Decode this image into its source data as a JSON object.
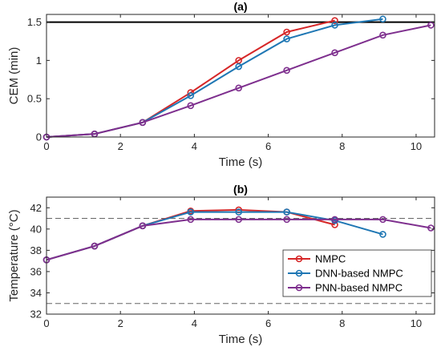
{
  "colors": {
    "NMPC": "#d62728",
    "DNN-based NMPC": "#1f77b4",
    "PNN-based NMPC": "#7e2f8e",
    "threshold": "#000000",
    "bounds": "#666666"
  },
  "chart_data": [
    {
      "type": "line",
      "title": "(a)",
      "xlabel": "Time (s)",
      "ylabel": "CEM (min)",
      "xlim": [
        0,
        10.5
      ],
      "ylim": [
        0,
        1.6
      ],
      "xticks": [
        0,
        2,
        4,
        6,
        8,
        10
      ],
      "xtick_labels": [
        "0",
        "2",
        "4",
        "6",
        "8",
        "10"
      ],
      "yticks": [
        0,
        0.5,
        1,
        1.5
      ],
      "ytick_labels": [
        "0",
        "0.5",
        "1",
        "1.5"
      ],
      "grid": false,
      "reference_line": {
        "y": 1.5,
        "style": "solid"
      },
      "series": [
        {
          "name": "NMPC",
          "x": [
            0,
            1.3,
            2.6,
            3.9,
            5.2,
            6.5,
            7.8
          ],
          "y": [
            0,
            0.04,
            0.19,
            0.58,
            1.0,
            1.37,
            1.52
          ]
        },
        {
          "name": "DNN-based NMPC",
          "x": [
            0,
            1.3,
            2.6,
            3.9,
            5.2,
            6.5,
            7.8,
            9.1
          ],
          "y": [
            0,
            0.04,
            0.19,
            0.54,
            0.92,
            1.28,
            1.46,
            1.54
          ]
        },
        {
          "name": "PNN-based NMPC",
          "x": [
            0,
            1.3,
            2.6,
            3.9,
            5.2,
            6.5,
            7.8,
            9.1,
            10.4
          ],
          "y": [
            0,
            0.04,
            0.19,
            0.41,
            0.64,
            0.87,
            1.1,
            1.33,
            1.46
          ]
        }
      ]
    },
    {
      "type": "line",
      "title": "(b)",
      "xlabel": "Time (s)",
      "ylabel": "Temperature (°C)",
      "xlim": [
        0,
        10.5
      ],
      "ylim": [
        32,
        43
      ],
      "xticks": [
        0,
        2,
        4,
        6,
        8,
        10
      ],
      "xtick_labels": [
        "0",
        "2",
        "4",
        "6",
        "8",
        "10"
      ],
      "yticks": [
        32,
        34,
        36,
        38,
        40,
        42
      ],
      "ytick_labels": [
        "32",
        "34",
        "36",
        "38",
        "40",
        "42"
      ],
      "grid": false,
      "bounds": [
        33,
        41
      ],
      "legend": {
        "placement": "right",
        "entries": [
          "NMPC",
          "DNN-based NMPC",
          "PNN-based NMPC"
        ]
      },
      "series": [
        {
          "name": "NMPC",
          "x": [
            0,
            1.3,
            2.6,
            3.9,
            5.2,
            6.5,
            7.8
          ],
          "y": [
            37.1,
            38.4,
            40.3,
            41.7,
            41.8,
            41.6,
            40.4
          ]
        },
        {
          "name": "DNN-based NMPC",
          "x": [
            0,
            1.3,
            2.6,
            3.9,
            5.2,
            6.5,
            7.8,
            9.1
          ],
          "y": [
            37.1,
            38.4,
            40.3,
            41.6,
            41.6,
            41.6,
            40.8,
            39.5
          ]
        },
        {
          "name": "PNN-based NMPC",
          "x": [
            0,
            1.3,
            2.6,
            3.9,
            5.2,
            6.5,
            7.8,
            9.1,
            10.4
          ],
          "y": [
            37.1,
            38.4,
            40.3,
            40.9,
            40.9,
            40.9,
            40.9,
            40.9,
            40.1
          ]
        }
      ]
    }
  ]
}
